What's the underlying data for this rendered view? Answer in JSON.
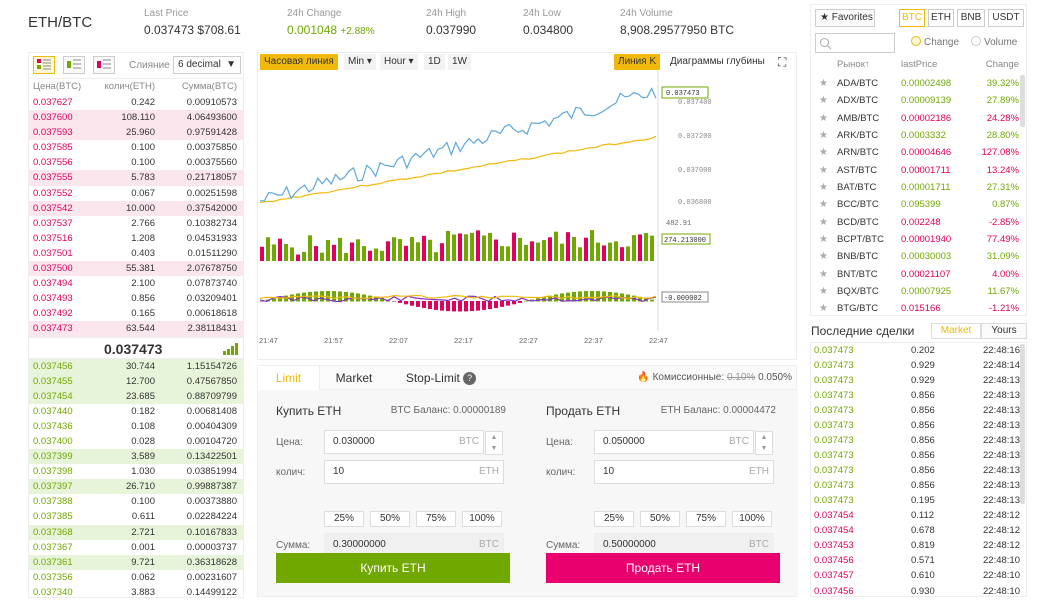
{
  "header": {
    "pair": "ETH/BTC",
    "last_price_label": "Last Price",
    "last_price": "0.037473 $708.61",
    "change_label": "24h Change",
    "change_value": "0.001048",
    "change_pct": "+2.88%",
    "high_label": "24h High",
    "high_value": "0.037990",
    "low_label": "24h Low",
    "low_value": "0.034800",
    "volume_label": "24h Volume",
    "volume_value": "8,908.29577950 BTC"
  },
  "book": {
    "merge_label": "Слияние",
    "decimal_select": "6 decimal",
    "col_price": "Цена(BTC)",
    "col_qty": "колич(ETH)",
    "col_sum": "Сумма(BTC)",
    "mid_price": "0.037473",
    "asks": [
      {
        "price": "0.037627",
        "qty": "0.242",
        "sum": "0.00910573",
        "hl": false
      },
      {
        "price": "0.037600",
        "qty": "108.110",
        "sum": "4.06493600",
        "hl": true
      },
      {
        "price": "0.037593",
        "qty": "25.960",
        "sum": "0.97591428",
        "hl": true
      },
      {
        "price": "0.037585",
        "qty": "0.100",
        "sum": "0.00375850",
        "hl": false
      },
      {
        "price": "0.037556",
        "qty": "0.100",
        "sum": "0.00375560",
        "hl": false
      },
      {
        "price": "0.037555",
        "qty": "5.783",
        "sum": "0.21718057",
        "hl": true
      },
      {
        "price": "0.037552",
        "qty": "0.067",
        "sum": "0.00251598",
        "hl": false
      },
      {
        "price": "0.037542",
        "qty": "10.000",
        "sum": "0.37542000",
        "hl": true
      },
      {
        "price": "0.037537",
        "qty": "2.766",
        "sum": "0.10382734",
        "hl": false
      },
      {
        "price": "0.037516",
        "qty": "1.208",
        "sum": "0.04531933",
        "hl": false
      },
      {
        "price": "0.037501",
        "qty": "0.403",
        "sum": "0.01511290",
        "hl": false
      },
      {
        "price": "0.037500",
        "qty": "55.381",
        "sum": "2.07678750",
        "hl": true
      },
      {
        "price": "0.037494",
        "qty": "2.100",
        "sum": "0.07873740",
        "hl": false
      },
      {
        "price": "0.037493",
        "qty": "0.856",
        "sum": "0.03209401",
        "hl": false
      },
      {
        "price": "0.037492",
        "qty": "0.165",
        "sum": "0.00618618",
        "hl": false
      },
      {
        "price": "0.037473",
        "qty": "63.544",
        "sum": "2.38118431",
        "hl": true
      }
    ],
    "bids": [
      {
        "price": "0.037456",
        "qty": "30.744",
        "sum": "1.15154726",
        "hl": true
      },
      {
        "price": "0.037455",
        "qty": "12.700",
        "sum": "0.47567850",
        "hl": true
      },
      {
        "price": "0.037454",
        "qty": "23.685",
        "sum": "0.88709799",
        "hl": true
      },
      {
        "price": "0.037440",
        "qty": "0.182",
        "sum": "0.00681408",
        "hl": false
      },
      {
        "price": "0.037436",
        "qty": "0.108",
        "sum": "0.00404309",
        "hl": false
      },
      {
        "price": "0.037400",
        "qty": "0.028",
        "sum": "0.00104720",
        "hl": false
      },
      {
        "price": "0.037399",
        "qty": "3.589",
        "sum": "0.13422501",
        "hl": true
      },
      {
        "price": "0.037398",
        "qty": "1.030",
        "sum": "0.03851994",
        "hl": false
      },
      {
        "price": "0.037397",
        "qty": "26.710",
        "sum": "0.99887387",
        "hl": true
      },
      {
        "price": "0.037388",
        "qty": "0.100",
        "sum": "0.00373880",
        "hl": false
      },
      {
        "price": "0.037385",
        "qty": "0.611",
        "sum": "0.02284224",
        "hl": false
      },
      {
        "price": "0.037368",
        "qty": "2.721",
        "sum": "0.10167833",
        "hl": true
      },
      {
        "price": "0.037367",
        "qty": "0.001",
        "sum": "0.00003737",
        "hl": false
      },
      {
        "price": "0.037361",
        "qty": "9.721",
        "sum": "0.36318628",
        "hl": true
      },
      {
        "price": "0.037356",
        "qty": "0.062",
        "sum": "0.00231607",
        "hl": false
      },
      {
        "price": "0.037340",
        "qty": "3.883",
        "sum": "0.14499122",
        "hl": false
      }
    ]
  },
  "chart": {
    "tb_line": "Часовая линия",
    "tb_min": "Min",
    "tb_hour": "Hour",
    "tb_1d": "1D",
    "tb_1w": "1W",
    "tb_linek": "Линия K",
    "tb_depth": "Диаграммы глубины",
    "price_tag": "0.037473",
    "y_labels": [
      "0.037400",
      "0.037200",
      "0.037000",
      "0.036800"
    ],
    "vol_top": "482.91",
    "vol_tag": "274.213000",
    "macd_tag": "-0.000002",
    "x_labels": [
      "21:47",
      "21:57",
      "22:07",
      "22:17",
      "22:27",
      "22:37",
      "22:47"
    ]
  },
  "chart_data": {
    "type": "line",
    "x": [
      "21:47",
      "21:57",
      "22:07",
      "22:17",
      "22:27",
      "22:37",
      "22:47"
    ],
    "y_ticks": [
      0.0368,
      0.037,
      0.0372,
      0.0374
    ],
    "series": [],
    "volume_max": 482.91,
    "volume_last": 274.213,
    "macd_last": -2e-06
  },
  "form": {
    "tab_limit": "Limit",
    "tab_market": "Market",
    "tab_stop": "Stop-Limit",
    "fee_label": "Комиссионные:",
    "fee_old": "0.10%",
    "fee_new": "0.050%",
    "buy": {
      "title": "Купить ETH",
      "balance": "BTC Баланс: 0.00000189",
      "price_label": "Цена:",
      "price": "0.030000",
      "price_unit": "BTC",
      "qty_label": "колич:",
      "qty": "10",
      "qty_unit": "ETH",
      "sum_label": "Сумма:",
      "sum": "0.30000000",
      "sum_unit": "BTC",
      "button": "Купить ETH"
    },
    "sell": {
      "title": "Продать ETH",
      "balance": "ETH Баланс: 0.00004472",
      "price_label": "Цена:",
      "price": "0.050000",
      "price_unit": "BTC",
      "qty_label": "колич:",
      "qty": "10",
      "qty_unit": "ETH",
      "sum_label": "Сумма:",
      "sum": "0.50000000",
      "sum_unit": "BTC",
      "button": "Продать ETH"
    },
    "pcts": [
      "25%",
      "50%",
      "75%",
      "100%"
    ]
  },
  "market": {
    "favorites": "Favorites",
    "currencies": [
      "BTC",
      "ETH",
      "BNB",
      "USDT"
    ],
    "radio_change": "Change",
    "radio_volume": "Volume",
    "col_symbol": "Рынок↑",
    "col_price": "lastPrice",
    "col_change": "Change",
    "rows": [
      {
        "sym": "ADA/BTC",
        "price": "0.00002498",
        "chg": "39.32%",
        "up": true
      },
      {
        "sym": "ADX/BTC",
        "price": "0.00009139",
        "chg": "27.89%",
        "up": true
      },
      {
        "sym": "AMB/BTC",
        "price": "0.00002186",
        "chg": "24.28%",
        "up": false
      },
      {
        "sym": "ARK/BTC",
        "price": "0.0003332",
        "chg": "28.80%",
        "up": true
      },
      {
        "sym": "ARN/BTC",
        "price": "0.00004646",
        "chg": "127.08%",
        "up": false
      },
      {
        "sym": "AST/BTC",
        "price": "0.00001711",
        "chg": "13.24%",
        "up": false
      },
      {
        "sym": "BAT/BTC",
        "price": "0.00001711",
        "chg": "27.31%",
        "up": true
      },
      {
        "sym": "BCC/BTC",
        "price": "0.095399",
        "chg": "0.87%",
        "up": true
      },
      {
        "sym": "BCD/BTC",
        "price": "0.002248",
        "chg": "-2.85%",
        "up": false
      },
      {
        "sym": "BCPT/BTC",
        "price": "0.00001940",
        "chg": "77.49%",
        "up": false
      },
      {
        "sym": "BNB/BTC",
        "price": "0.00030003",
        "chg": "31.09%",
        "up": true
      },
      {
        "sym": "BNT/BTC",
        "price": "0.00021107",
        "chg": "4.00%",
        "up": false
      },
      {
        "sym": "BQX/BTC",
        "price": "0.00007925",
        "chg": "11.67%",
        "up": true
      },
      {
        "sym": "BTG/BTC",
        "price": "0.015166",
        "chg": "-1.21%",
        "up": false
      }
    ]
  },
  "trades": {
    "title": "Последние сделки",
    "tab_market": "Market",
    "tab_yours": "Yours",
    "rows": [
      {
        "p": "0.037473",
        "q": "0.202",
        "t": "22:48:16",
        "up": true
      },
      {
        "p": "0.037473",
        "q": "0.929",
        "t": "22:48:14",
        "up": true
      },
      {
        "p": "0.037473",
        "q": "0.929",
        "t": "22:48:13",
        "up": true
      },
      {
        "p": "0.037473",
        "q": "0.856",
        "t": "22:48:13",
        "up": true
      },
      {
        "p": "0.037473",
        "q": "0.856",
        "t": "22:48:13",
        "up": true
      },
      {
        "p": "0.037473",
        "q": "0.856",
        "t": "22:48:13",
        "up": true
      },
      {
        "p": "0.037473",
        "q": "0.856",
        "t": "22:48:13",
        "up": true
      },
      {
        "p": "0.037473",
        "q": "0.856",
        "t": "22:48:13",
        "up": true
      },
      {
        "p": "0.037473",
        "q": "0.856",
        "t": "22:48:13",
        "up": true
      },
      {
        "p": "0.037473",
        "q": "0.856",
        "t": "22:48:13",
        "up": true
      },
      {
        "p": "0.037473",
        "q": "0.195",
        "t": "22:48:13",
        "up": true
      },
      {
        "p": "0.037454",
        "q": "0.112",
        "t": "22:48:12",
        "up": false
      },
      {
        "p": "0.037454",
        "q": "0.678",
        "t": "22:48:12",
        "up": false
      },
      {
        "p": "0.037453",
        "q": "0.819",
        "t": "22:48:12",
        "up": false
      },
      {
        "p": "0.037456",
        "q": "0.571",
        "t": "22:48:10",
        "up": false
      },
      {
        "p": "0.037457",
        "q": "0.610",
        "t": "22:48:10",
        "up": false
      },
      {
        "p": "0.037456",
        "q": "0.930",
        "t": "22:48:10",
        "up": false
      }
    ]
  },
  "colors": {
    "up": "#70a800",
    "down": "#e0005c",
    "accent": "#f0b90b"
  }
}
